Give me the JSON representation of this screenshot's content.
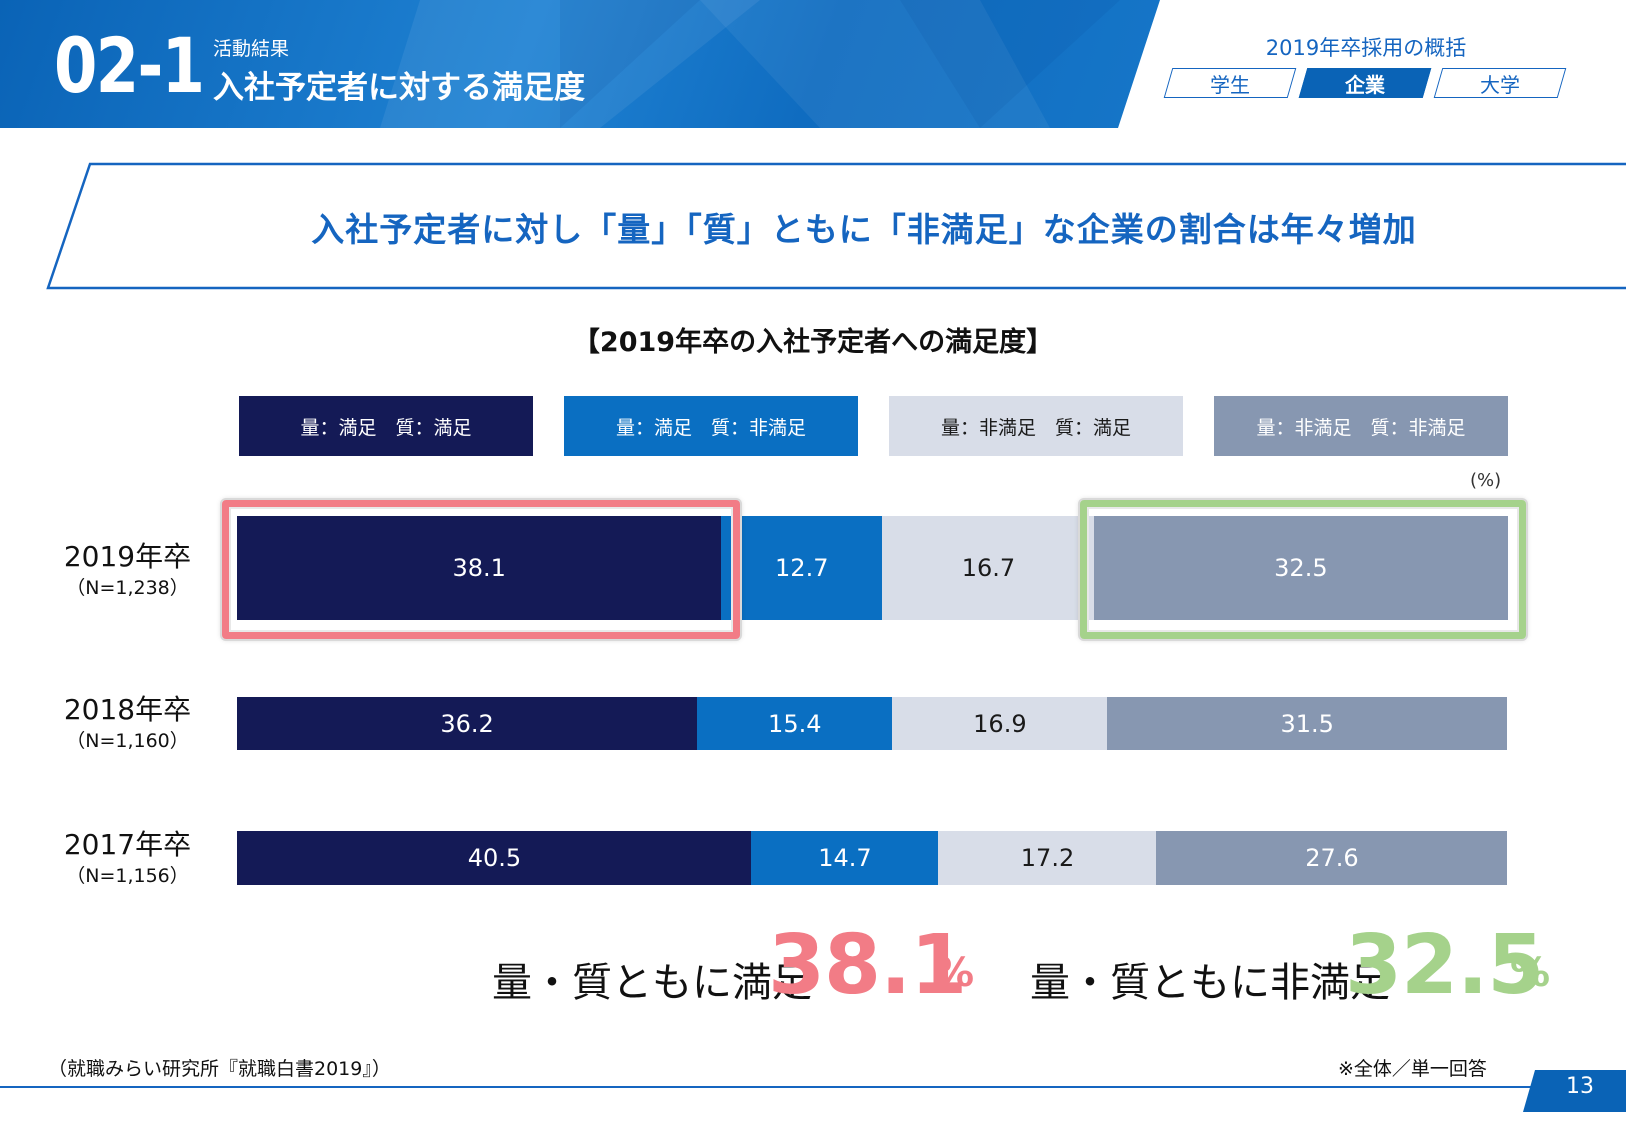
{
  "header": {
    "section_number": "02-1",
    "category": "活動結果",
    "title": "入社予定者に対する満足度"
  },
  "overview": {
    "title": "2019年卒採用の概括",
    "tabs": [
      {
        "label": "学生",
        "active": false
      },
      {
        "label": "企業",
        "active": true
      },
      {
        "label": "大学",
        "active": false
      }
    ]
  },
  "headline": "入社予定者に対し「量」「質」ともに「非満足」な企業の割合は年々増加",
  "chart_data": {
    "type": "bar",
    "orientation": "horizontal-stacked-100",
    "title": "【2019年卒の入社予定者への満足度】",
    "unit": "(%)",
    "categories": [
      "2019年卒",
      "2018年卒",
      "2017年卒"
    ],
    "sample_sizes": [
      "（N=1,238）",
      "（N=1,160）",
      "（N=1,156）"
    ],
    "series": [
      {
        "name": "量：満足　質：満足",
        "color": "#141a56",
        "text_color": "#ffffff",
        "values": [
          38.1,
          36.2,
          40.5
        ]
      },
      {
        "name": "量：満足　質：非満足",
        "color": "#0a6fc2",
        "text_color": "#ffffff",
        "values": [
          12.7,
          15.4,
          14.7
        ]
      },
      {
        "name": "量：非満足　質：満足",
        "color": "#d8dde8",
        "text_color": "#1a1a1a",
        "values": [
          16.7,
          16.9,
          17.2
        ]
      },
      {
        "name": "量：非満足　質：非満足",
        "color": "#8797b1",
        "text_color": "#ffffff",
        "values": [
          32.5,
          31.5,
          27.6
        ]
      }
    ],
    "xlim": [
      0,
      100
    ],
    "highlight_colors": {
      "satisfied": "#f27c86",
      "unsatisfied": "#a5d28b"
    }
  },
  "summary": {
    "satisfied_label": "量・質ともに満足",
    "satisfied_value": "38.1",
    "unsatisfied_label": "量・質ともに非満足",
    "unsatisfied_value": "32.5",
    "unit": "%"
  },
  "footer": {
    "source": "（就職みらい研究所『就職白書2019』）",
    "note": "※全体／単一回答",
    "page": "13"
  }
}
